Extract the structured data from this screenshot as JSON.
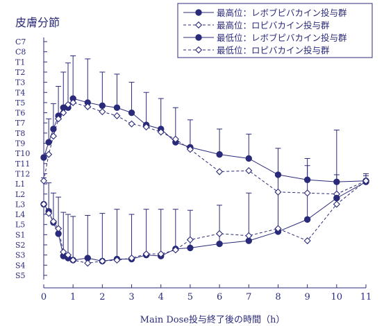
{
  "chart_data": {
    "type": "line",
    "title": "皮膚分節",
    "xlabel": "Main Dose投与終了後の時間（h）",
    "ylabel": "",
    "x_ticks": [
      0,
      1,
      2,
      3,
      4,
      5,
      6,
      7,
      8,
      9,
      10,
      11
    ],
    "xlim": [
      0,
      11
    ],
    "y_categories": [
      "C7",
      "C8",
      "T1",
      "T2",
      "T3",
      "T4",
      "T5",
      "T6",
      "T7",
      "T8",
      "T9",
      "T10",
      "T11",
      "T12",
      "L1",
      "L2",
      "L3",
      "L4",
      "L5",
      "S1",
      "S2",
      "S3",
      "S4",
      "S5"
    ],
    "series": [
      {
        "name": "最高位：レボブピバカイン投与群",
        "marker": "filled-circle",
        "line": "solid",
        "x": [
          0,
          0.17,
          0.33,
          0.5,
          0.67,
          0.83,
          1,
          1.5,
          2,
          2.5,
          3,
          3.5,
          4,
          4.5,
          5,
          6,
          7,
          8,
          9,
          10,
          11
        ],
        "y_index": [
          11.4,
          9.9,
          8.6,
          7.3,
          6.5,
          6.5,
          5.6,
          6.0,
          6.3,
          6.5,
          7.0,
          8.2,
          8.6,
          9.9,
          10.4,
          11.1,
          11.5,
          13.1,
          13.6,
          13.8,
          13.7
        ],
        "err_up": [
          0,
          2.3,
          2.5,
          2.9,
          3.5,
          4.4,
          4.2,
          4.3,
          3.3,
          3.3,
          3.0,
          3.2,
          3.0,
          3.4,
          2.7,
          2.5,
          2.4,
          2.6,
          1.4,
          0.7,
          0.5
        ]
      },
      {
        "name": "最高位：ロピバカイン投与群",
        "marker": "open-diamond",
        "line": "dashed",
        "x": [
          0,
          0.17,
          0.33,
          0.5,
          0.67,
          0.83,
          1,
          1.5,
          2,
          2.5,
          3,
          3.5,
          4,
          4.5,
          5,
          6,
          7,
          8,
          9,
          10,
          11
        ],
        "y_index": [
          13.7,
          11.1,
          9.3,
          7.6,
          7.0,
          6.2,
          6.0,
          6.4,
          6.9,
          7.3,
          8.1,
          8.4,
          8.9,
          9.6,
          10.6,
          12.8,
          12.7,
          14.8,
          14.9,
          15.0,
          13.7
        ],
        "err_up": [
          0,
          0,
          0,
          0,
          0,
          0,
          0,
          0,
          0,
          0,
          0,
          0,
          0,
          0,
          0,
          0,
          0,
          0,
          0,
          0,
          0
        ]
      },
      {
        "name": "最低位：レボブピバカイン投与群",
        "marker": "filled-circle",
        "line": "solid",
        "x": [
          0,
          0.17,
          0.33,
          0.5,
          0.67,
          0.83,
          1,
          1.5,
          2,
          2.5,
          3,
          3.5,
          4,
          4.5,
          5,
          6,
          7,
          8,
          9,
          10,
          11
        ],
        "y_index": [
          16.0,
          16.7,
          17.8,
          18.9,
          21.1,
          21.3,
          21.5,
          21.3,
          21.6,
          21.4,
          21.4,
          21.0,
          21.1,
          20.4,
          20.3,
          19.9,
          19.6,
          18.7,
          17.5,
          15.4,
          13.8
        ],
        "err_up": [
          2.6,
          2.8,
          2.9,
          3.6,
          4.3,
          4.3,
          4.3,
          4.2,
          4.7,
          4.9,
          4.4,
          4.5,
          4.6,
          3.9,
          3.7,
          3.8,
          4.7,
          5.6,
          6.0,
          6.7,
          0.8
        ]
      },
      {
        "name": "最低位：ロピバカイン投与群",
        "marker": "open-diamond",
        "line": "dashed",
        "x": [
          0,
          0.17,
          0.33,
          0.5,
          0.67,
          0.83,
          1,
          1.5,
          2,
          2.5,
          3,
          3.5,
          4,
          4.5,
          5,
          6,
          7,
          8,
          9,
          10,
          11
        ],
        "y_index": [
          16.0,
          16.9,
          17.7,
          18.4,
          20.7,
          21.0,
          21.5,
          21.8,
          21.6,
          21.5,
          21.3,
          20.9,
          20.9,
          20.5,
          19.5,
          18.9,
          19.1,
          18.4,
          19.6,
          16.0,
          13.7
        ],
        "err_up": [
          0,
          0,
          0,
          0,
          0,
          0,
          0,
          0,
          0,
          0,
          0,
          0,
          0,
          0,
          0,
          0,
          0,
          0,
          0,
          0,
          0
        ]
      }
    ],
    "legend_position": "top-right",
    "colors": {
      "main": "#2a2a7a",
      "background": "#ffffff"
    }
  }
}
